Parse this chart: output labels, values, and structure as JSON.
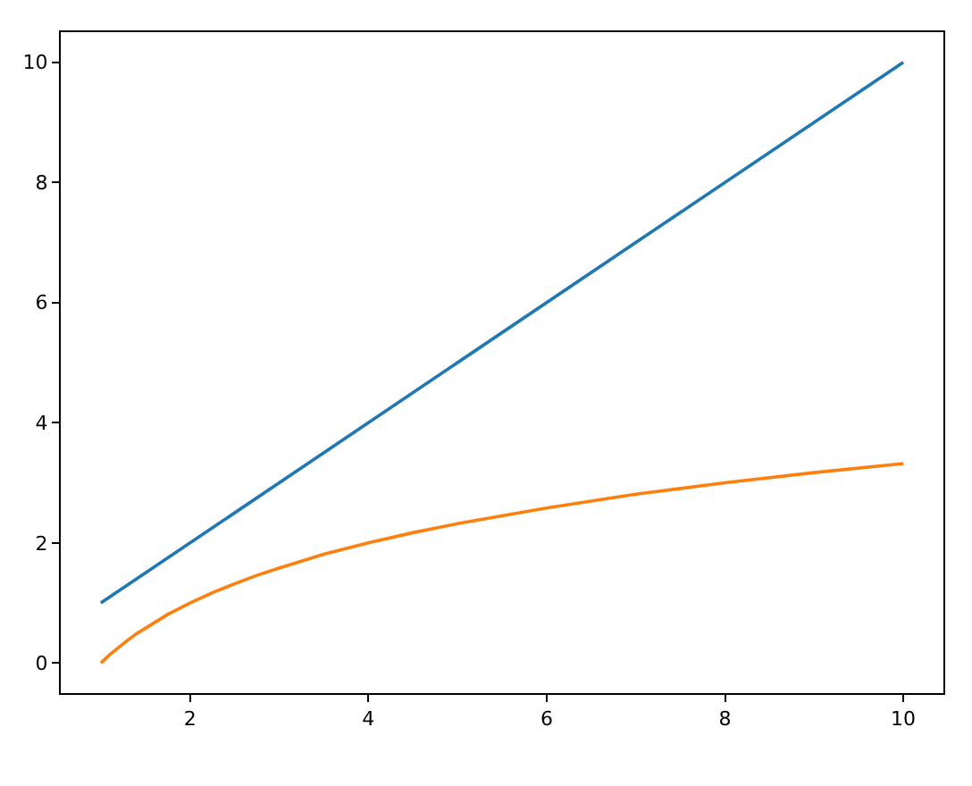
{
  "chart_data": {
    "type": "line",
    "xlim": [
      0.55,
      10.45
    ],
    "ylim": [
      -0.5,
      10.5
    ],
    "xticks": [
      2,
      4,
      6,
      8,
      10
    ],
    "yticks": [
      0,
      2,
      4,
      6,
      8,
      10
    ],
    "grid": false,
    "marker": "none",
    "line_style": "solid",
    "series": [
      {
        "color": "#1f77b4",
        "x": [
          1,
          10
        ],
        "values": [
          1,
          10
        ]
      },
      {
        "color": "#ff7f0e",
        "x": [
          1,
          1.1,
          1.2,
          1.3,
          1.4,
          1.5,
          1.75,
          2,
          2.25,
          2.5,
          2.75,
          3,
          3.5,
          4,
          4.5,
          5,
          6,
          7,
          8,
          9,
          10
        ],
        "values": [
          0,
          0.14,
          0.26,
          0.38,
          0.49,
          0.58,
          0.81,
          1,
          1.17,
          1.32,
          1.46,
          1.58,
          1.81,
          2,
          2.17,
          2.32,
          2.58,
          2.81,
          3,
          3.17,
          3.32
        ]
      }
    ]
  }
}
